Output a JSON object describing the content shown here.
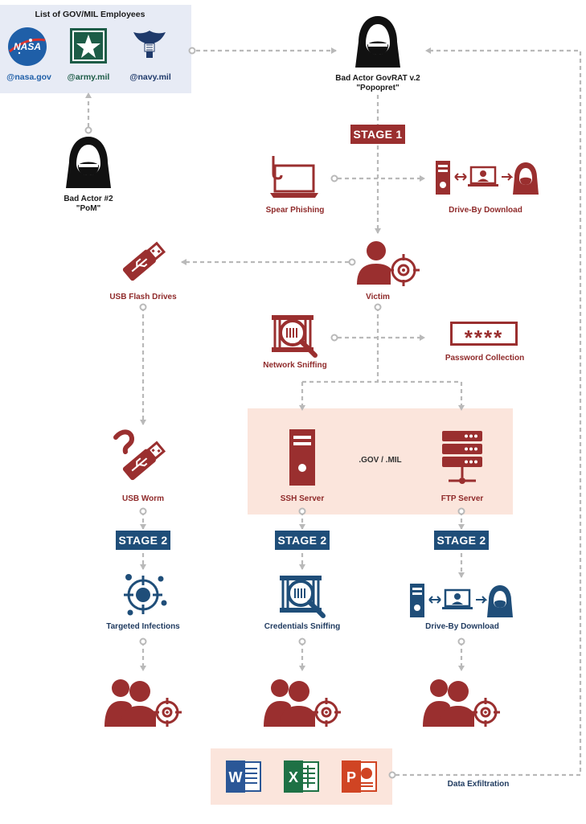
{
  "employees_box": {
    "title": "List of GOV/MIL Employees",
    "nasa_logo_text": "NASA",
    "domains": [
      "@nasa.gov",
      "@army.mil",
      "@navy.mil"
    ]
  },
  "bad_actor_1": {
    "line1": "Bad Actor GovRAT v.2",
    "line2": "\"Popopret\""
  },
  "bad_actor_2": {
    "line1": "Bad Actor #2",
    "line2": "\"PoM\""
  },
  "stage1": {
    "label": "STAGE 1"
  },
  "spear_phishing": {
    "label": "Spear Phishing"
  },
  "drive_by_top": {
    "label": "Drive-By Download"
  },
  "victim": {
    "label": "Victim"
  },
  "usb_flash": {
    "label": "USB Flash Drives"
  },
  "network_sniffing": {
    "label": "Network Sniffing"
  },
  "password": {
    "label": "Password Collection",
    "mask": "****"
  },
  "servers": {
    "center_label": ".GOV / .MIL",
    "ssh": "SSH Server",
    "ftp": "FTP Server"
  },
  "usb_worm": {
    "label": "USB Worm"
  },
  "stage2": {
    "label": "STAGE 2"
  },
  "targeted_infections": {
    "label": "Targeted Infections"
  },
  "credentials_sniffing": {
    "label": "Credentials Sniffing"
  },
  "drive_by_bottom": {
    "label": "Drive-By Download"
  },
  "office": {
    "word": "W",
    "excel": "X",
    "powerpoint": "P"
  },
  "data_exfiltration": {
    "label": "Data Exfiltration"
  },
  "colors": {
    "red": "#9a2f2f",
    "blue": "#1f4e79",
    "peach": "#fbe5dc",
    "lightblue": "#e7ebf5"
  }
}
